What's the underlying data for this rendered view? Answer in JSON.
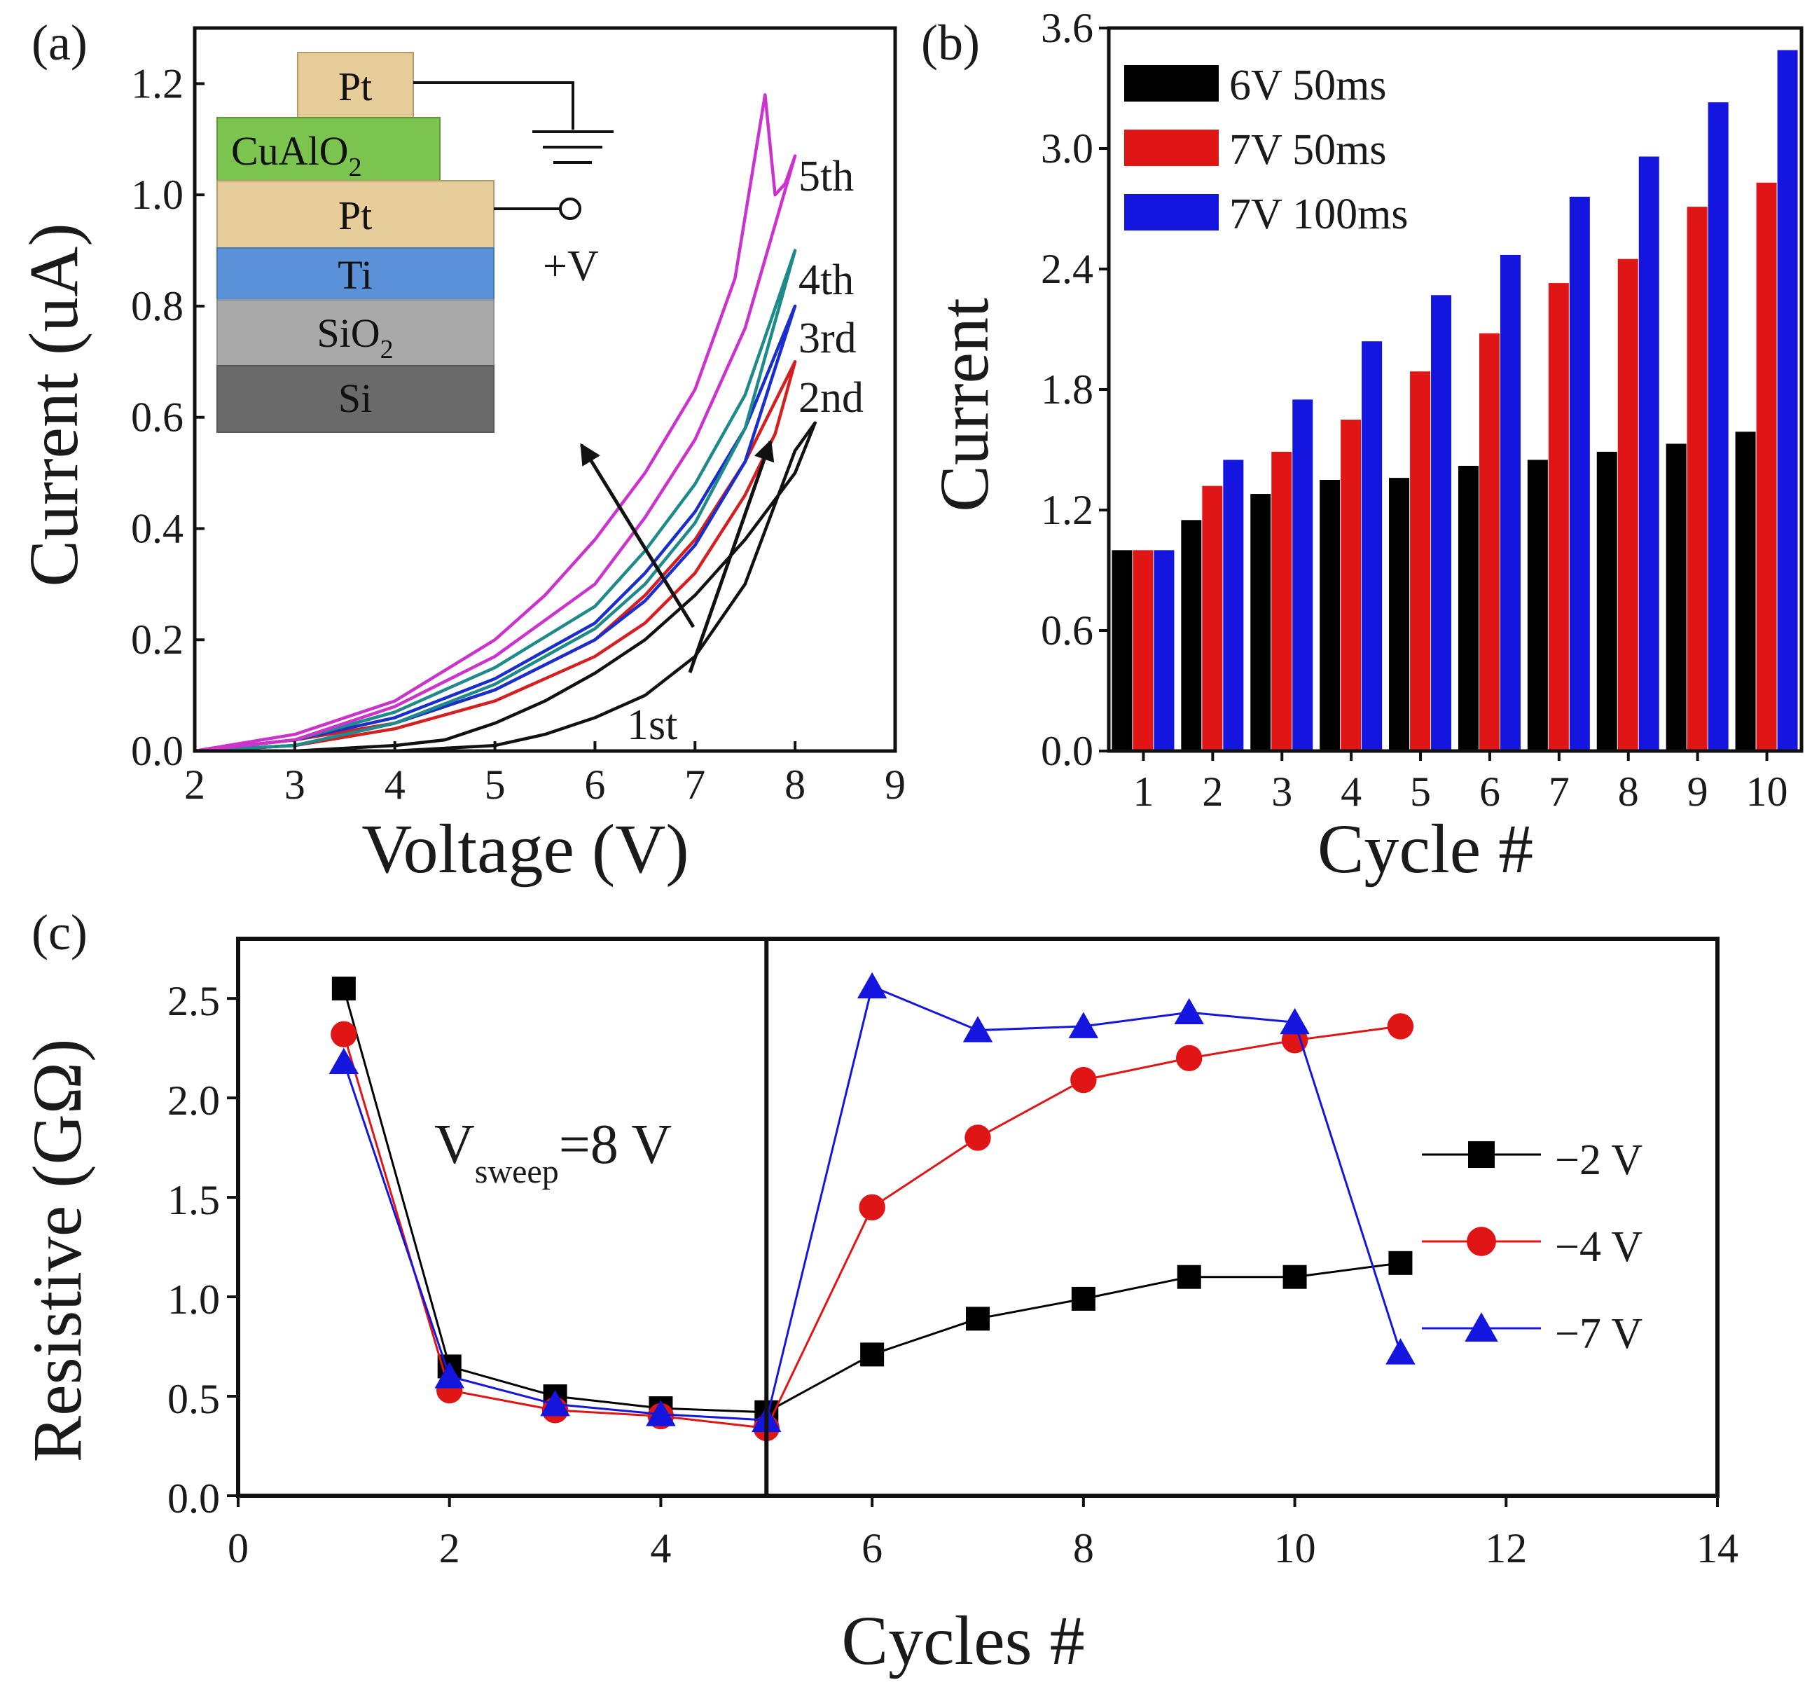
{
  "chart_data": [
    {
      "panel": "(a)",
      "type": "line",
      "xlabel": "Voltage (V)",
      "ylabel": "Current (uA)",
      "xlim": [
        2,
        9
      ],
      "ylim": [
        0,
        1.3
      ],
      "xticks": [
        "2",
        "3",
        "4",
        "5",
        "6",
        "7",
        "8",
        "9"
      ],
      "yticks": [
        "0.0",
        "0.2",
        "0.4",
        "0.6",
        "0.8",
        "1.0",
        "1.2"
      ],
      "series": [
        {
          "name": "1st",
          "color": "#111111",
          "sweep": "hysteresis loop",
          "up": [
            [
              2,
              0
            ],
            [
              3,
              0
            ],
            [
              4,
              0
            ],
            [
              5,
              0.01
            ],
            [
              5.5,
              0.03
            ],
            [
              6,
              0.06
            ],
            [
              6.5,
              0.1
            ],
            [
              7,
              0.17
            ],
            [
              7.5,
              0.3
            ],
            [
              8,
              0.54
            ],
            [
              8.2,
              0.59
            ]
          ],
          "down": [
            [
              8.2,
              0.59
            ],
            [
              8,
              0.5
            ],
            [
              7.5,
              0.38
            ],
            [
              7,
              0.28
            ],
            [
              6.5,
              0.2
            ],
            [
              6,
              0.14
            ],
            [
              5.5,
              0.09
            ],
            [
              5,
              0.05
            ],
            [
              4.5,
              0.02
            ],
            [
              4,
              0.01
            ],
            [
              3,
              0
            ],
            [
              2,
              0
            ]
          ]
        },
        {
          "name": "2nd",
          "color": "#d42020",
          "up": [
            [
              2,
              0
            ],
            [
              3,
              0.01
            ],
            [
              4,
              0.04
            ],
            [
              5,
              0.09
            ],
            [
              6,
              0.17
            ],
            [
              6.5,
              0.23
            ],
            [
              7,
              0.32
            ],
            [
              7.5,
              0.46
            ],
            [
              7.8,
              0.57
            ],
            [
              8,
              0.7
            ]
          ],
          "down": [
            [
              8,
              0.7
            ],
            [
              7.5,
              0.52
            ],
            [
              7,
              0.38
            ],
            [
              6.5,
              0.28
            ],
            [
              6,
              0.2
            ],
            [
              5,
              0.11
            ],
            [
              4,
              0.05
            ],
            [
              3,
              0.02
            ],
            [
              2,
              0
            ]
          ]
        },
        {
          "name": "3rd",
          "color": "#1a2ecc",
          "up": [
            [
              2,
              0
            ],
            [
              3,
              0.01
            ],
            [
              4,
              0.05
            ],
            [
              5,
              0.11
            ],
            [
              6,
              0.2
            ],
            [
              6.5,
              0.27
            ],
            [
              7,
              0.37
            ],
            [
              7.5,
              0.52
            ],
            [
              8,
              0.8
            ]
          ],
          "down": [
            [
              8,
              0.8
            ],
            [
              7.5,
              0.58
            ],
            [
              7,
              0.43
            ],
            [
              6.5,
              0.32
            ],
            [
              6,
              0.23
            ],
            [
              5,
              0.13
            ],
            [
              4,
              0.06
            ],
            [
              3,
              0.02
            ],
            [
              2,
              0
            ]
          ]
        },
        {
          "name": "4th",
          "color": "#1f8a8a",
          "up": [
            [
              2,
              0
            ],
            [
              3,
              0.01
            ],
            [
              4,
              0.05
            ],
            [
              5,
              0.12
            ],
            [
              6,
              0.22
            ],
            [
              6.5,
              0.3
            ],
            [
              7,
              0.41
            ],
            [
              7.5,
              0.58
            ],
            [
              8,
              0.9
            ]
          ],
          "down": [
            [
              8,
              0.9
            ],
            [
              7.5,
              0.64
            ],
            [
              7,
              0.48
            ],
            [
              6.5,
              0.36
            ],
            [
              6,
              0.26
            ],
            [
              5,
              0.15
            ],
            [
              4,
              0.07
            ],
            [
              3,
              0.02
            ],
            [
              2,
              0
            ]
          ]
        },
        {
          "name": "5th",
          "color": "#cc33cc",
          "up": [
            [
              2,
              0
            ],
            [
              3,
              0.03
            ],
            [
              4,
              0.09
            ],
            [
              5,
              0.2
            ],
            [
              5.5,
              0.28
            ],
            [
              6,
              0.38
            ],
            [
              6.5,
              0.5
            ],
            [
              7,
              0.65
            ],
            [
              7.4,
              0.85
            ],
            [
              7.7,
              1.18
            ],
            [
              7.8,
              1.0
            ],
            [
              7.9,
              1.02
            ],
            [
              8,
              1.07
            ]
          ],
          "down": [
            [
              8,
              1.07
            ],
            [
              7.5,
              0.76
            ],
            [
              7,
              0.56
            ],
            [
              6.5,
              0.42
            ],
            [
              6,
              0.3
            ],
            [
              5,
              0.17
            ],
            [
              4,
              0.08
            ],
            [
              3,
              0.02
            ],
            [
              2,
              0
            ]
          ]
        }
      ],
      "annotations": {
        "first": "1st",
        "second": "2nd",
        "third": "3rd",
        "fourth": "4th",
        "fifth": "5th",
        "bias": "+V"
      },
      "inset_layers": {
        "top_electrode": "Pt",
        "oxide": "CuAlO",
        "oxide_sub": "2",
        "bottom_electrode": "Pt",
        "adhesion": "Ti",
        "insulator": "SiO",
        "insulator_sub": "2",
        "substrate": "Si"
      }
    },
    {
      "panel": "(b)",
      "type": "bar",
      "xlabel": "Cycle #",
      "ylabel": "Current",
      "ylim": [
        0,
        3.6
      ],
      "yticks": [
        "0.0",
        "0.6",
        "1.2",
        "1.8",
        "2.4",
        "3.0",
        "3.6"
      ],
      "categories": [
        "1",
        "2",
        "3",
        "4",
        "5",
        "6",
        "7",
        "8",
        "9",
        "10"
      ],
      "series": [
        {
          "name": "6V 50ms",
          "color": "#000000",
          "values": [
            1.0,
            1.15,
            1.28,
            1.35,
            1.36,
            1.42,
            1.45,
            1.49,
            1.53,
            1.59
          ]
        },
        {
          "name": "7V 50ms",
          "color": "#e01515",
          "values": [
            1.0,
            1.32,
            1.49,
            1.65,
            1.89,
            2.08,
            2.33,
            2.45,
            2.71,
            2.83
          ]
        },
        {
          "name": "7V 100ms",
          "color": "#1515e0",
          "values": [
            1.0,
            1.45,
            1.75,
            2.04,
            2.27,
            2.47,
            2.76,
            2.96,
            3.23,
            3.49
          ]
        }
      ]
    },
    {
      "panel": "(c)",
      "type": "line",
      "xlabel": "Cycles #",
      "ylabel": "Resistive (GΩ)",
      "xlim": [
        0,
        14
      ],
      "ylim": [
        0,
        2.8
      ],
      "xticks": [
        "0",
        "2",
        "4",
        "6",
        "8",
        "10",
        "12",
        "14"
      ],
      "yticks": [
        "0.0",
        "0.5",
        "1.0",
        "1.5",
        "2.0",
        "2.5"
      ],
      "divider_x": 5,
      "annotation": {
        "main": "V",
        "sub": "sweep",
        "rest": "=8 V"
      },
      "series": [
        {
          "name": "−2 V",
          "color": "#000000",
          "marker": "square",
          "x": [
            1,
            2,
            3,
            4,
            5,
            6,
            7,
            8,
            9,
            10,
            11
          ],
          "y": [
            2.55,
            0.65,
            0.5,
            0.44,
            0.42,
            0.71,
            0.89,
            0.99,
            1.1,
            1.1,
            1.17
          ]
        },
        {
          "name": "−4 V",
          "color": "#e01515",
          "marker": "circle",
          "x": [
            1,
            2,
            3,
            4,
            5,
            6,
            7,
            8,
            9,
            10,
            11
          ],
          "y": [
            2.32,
            0.53,
            0.43,
            0.4,
            0.34,
            1.45,
            1.8,
            2.09,
            2.2,
            2.29,
            2.36
          ]
        },
        {
          "name": "−7 V",
          "color": "#1515e0",
          "marker": "triangle",
          "x": [
            1,
            2,
            3,
            4,
            5,
            6,
            7,
            8,
            9,
            10,
            11
          ],
          "y": [
            2.18,
            0.6,
            0.46,
            0.41,
            0.38,
            2.56,
            2.34,
            2.36,
            2.43,
            2.38,
            0.72
          ]
        }
      ]
    }
  ]
}
